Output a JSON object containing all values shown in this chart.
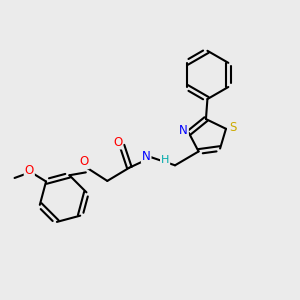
{
  "bg_color": "#ebebeb",
  "bond_color": "#000000",
  "bond_width": 1.5,
  "atom_colors": {
    "N": "#0000ff",
    "O": "#ff0000",
    "S": "#ccaa00",
    "C": "#000000",
    "H": "#00aaaa"
  },
  "font_size": 8.5,
  "fig_size": [
    3.0,
    3.0
  ],
  "dpi": 100
}
